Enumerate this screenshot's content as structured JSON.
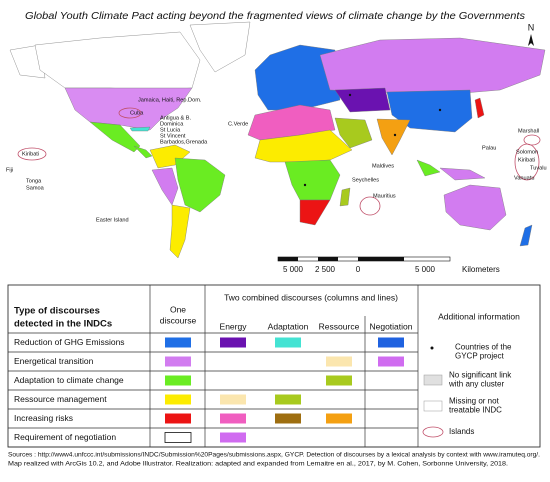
{
  "title": "Global Youth Climate Pact acting beyond the fragmented views of climate change by the Governments",
  "compass": "N",
  "map_labels": [
    "Cuba",
    "Jamaica, Haiti, Rep.Dom.",
    "Antigua & B.",
    "Dominica",
    "St Lucia",
    "St Vincent",
    "Barbados,Grenada",
    "C.Verde",
    "Maldives",
    "Seychelles",
    "Mauritius",
    "Palau",
    "Marshall",
    "Solomon",
    "Kiribati",
    "Tuvalu",
    "Vanuatu",
    "Kiribati",
    "Fiji",
    "Tonga",
    "Samoa",
    "Easter Island"
  ],
  "scale": {
    "labels": [
      "5 000",
      "2 500",
      "0",
      "5 000"
    ],
    "unit": "Kilometers"
  },
  "legend": {
    "type_header": [
      "Type of discourses",
      "detected in the INDCs"
    ],
    "one_header": [
      "One",
      "discourse"
    ],
    "two_header": "Two combined discourses (columns and lines)",
    "columns": [
      "Energy",
      "Adaptation",
      "Ressource",
      "Negotiation"
    ],
    "additional_header": "Additional information",
    "rows": [
      {
        "label": "Reduction of GHG Emissions",
        "cells": [
          "#1f6fe6",
          "#6a12b0",
          "#44e3d3",
          null,
          "#1f62e0"
        ]
      },
      {
        "label": "Energetical transition",
        "cells": [
          "#d27cf0",
          null,
          null,
          "#fbe6ae",
          "#d06cf0"
        ]
      },
      {
        "label": "Adaptation to climate change",
        "cells": [
          "#6aec22",
          null,
          null,
          "#a8ca1e",
          null
        ]
      },
      {
        "label": "Ressource management",
        "cells": [
          "#fcec00",
          "#fbe6ae",
          "#a8ca1e",
          null,
          null
        ]
      },
      {
        "label": "Increasing risks",
        "cells": [
          "#ec1414",
          "#f05ec0",
          "#9e6e10",
          "#f4a012",
          null
        ]
      },
      {
        "label": "Requirement of negotiation",
        "cells": [
          "#ffffff",
          "#d06cf0",
          null,
          null,
          null
        ]
      }
    ],
    "additional": [
      [
        "Countries of the",
        "GYCP project"
      ],
      [
        "No significant link",
        "with any cluster"
      ],
      [
        "Missing or not",
        "treatable INDC"
      ],
      [
        "Islands"
      ]
    ]
  },
  "sources": [
    "Sources : http://www4.unfccc.int/submissions/INDC/Submission%20Pages/submissions.aspx, GYCP.  Detection of discourses by a lexical analysis by context with www.iramuteq.org/.",
    "Map realized with ArcGis 10.2,  and Adobe Illustrator. Realization: adapted and expanded from Lemaitre en al., 2017, by M. Cohen, Sorbonne University, 2018."
  ]
}
